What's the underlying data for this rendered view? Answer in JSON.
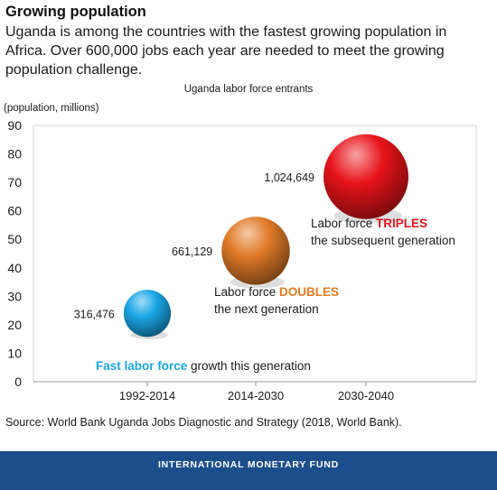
{
  "header": {
    "title": "Growing population",
    "subtitle": "Uganda is among the countries with the fastest growing population in Africa. Over 600,000 jobs each year are needed to meet the growing population challenge."
  },
  "chart_data": {
    "type": "scatter",
    "title": "Uganda labor force entrants",
    "ylabel": "(population, millions)",
    "xlabel": "",
    "ylim": [
      0,
      90
    ],
    "yticks": [
      0,
      10,
      20,
      30,
      40,
      50,
      60,
      70,
      80,
      90
    ],
    "categories": [
      "1992-2014",
      "2014-2030",
      "2030-2040"
    ],
    "grid": false,
    "points": [
      {
        "category": "1992-2014",
        "y": 24,
        "size": 316476,
        "value_label": "316,476",
        "color": "#1aa6e6",
        "annotation": {
          "highlight": "Fast labor force",
          "text": " growth this generation",
          "line2": ""
        },
        "highlight_color": "#1aa6e6"
      },
      {
        "category": "2014-2030",
        "y": 46,
        "size": 661129,
        "value_label": "661,129",
        "color": "#e07a28",
        "annotation": {
          "prefix": "Labor force ",
          "highlight": "DOUBLES",
          "line2": "the next generation"
        },
        "highlight_color": "#e57b22"
      },
      {
        "category": "2030-2040",
        "y": 72,
        "size": 1024649,
        "value_label": "1,024,649",
        "color": "#e8141a",
        "annotation": {
          "prefix": "Labor force ",
          "highlight": "TRIPLES",
          "line2": "the subsequent generation"
        },
        "highlight_color": "#e8141a"
      }
    ]
  },
  "source": "Source: World Bank Uganda Jobs Diagnostic and Strategy (2018, World Bank).",
  "footer": {
    "label": "INTERNATIONAL MONETARY FUND",
    "color": "#1d4e8c"
  }
}
